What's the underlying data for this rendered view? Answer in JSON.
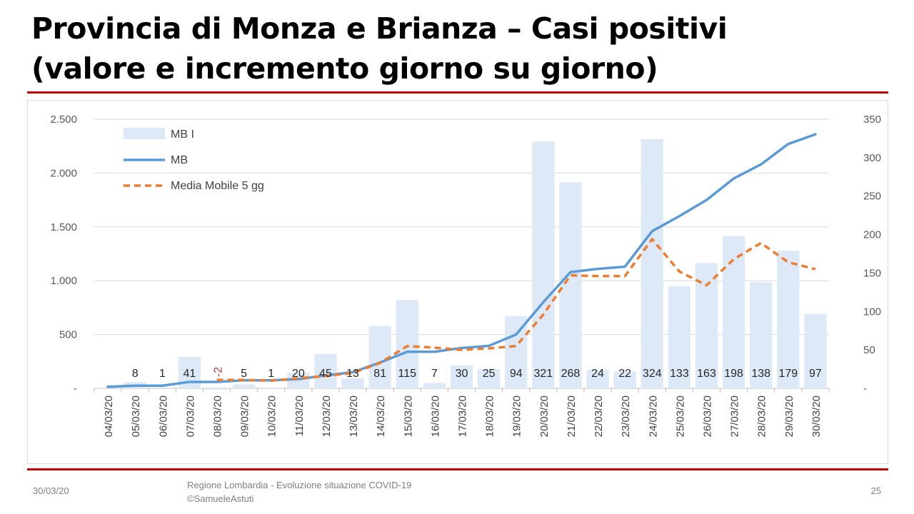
{
  "slide": {
    "title_line1": "Provincia di Monza e Brianza – Casi positivi",
    "title_line2": "(valore e incremento giorno su giorno)",
    "footer_date": "30/03/20",
    "footer_source_line1": "Regione Lombardia - Evoluzione situazione COVID-19",
    "footer_source_line2": "©SamueleAstuti",
    "page_number": "25"
  },
  "colors": {
    "accent_rule": "#c00000",
    "bars": "#dde9f6",
    "line": "#5b9bd5",
    "moving_avg": "#ed7d31",
    "grid": "#d9d9d9"
  },
  "chart_data": {
    "type": "bar",
    "categories": [
      "04/03/20",
      "05/03/20",
      "06/03/20",
      "07/03/20",
      "08/03/20",
      "09/03/20",
      "10/03/20",
      "11/03/20",
      "12/03/20",
      "13/03/20",
      "14/03/20",
      "15/03/20",
      "16/03/20",
      "17/03/20",
      "18/03/20",
      "19/03/20",
      "20/03/20",
      "21/03/20",
      "22/03/20",
      "23/03/20",
      "24/03/20",
      "25/03/20",
      "26/03/20",
      "27/03/20",
      "28/03/20",
      "29/03/20",
      "30/03/20"
    ],
    "y_left": {
      "ticks": [
        "2.500",
        "2.000",
        "1.500",
        "1.000",
        "500",
        "-"
      ],
      "values": [
        2500,
        2000,
        1500,
        1000,
        500,
        0
      ],
      "ylim": [
        0,
        2500
      ]
    },
    "y_right": {
      "ticks": [
        "350",
        "300",
        "250",
        "200",
        "150",
        "100",
        "50",
        "-"
      ],
      "values": [
        350,
        300,
        250,
        200,
        150,
        100,
        50,
        0
      ],
      "ylim": [
        0,
        350
      ]
    },
    "legend_position": "top-left",
    "series": [
      {
        "name": "MB I",
        "type": "bar",
        "axis": "right",
        "values": [
          null,
          8,
          1,
          41,
          -2,
          5,
          1,
          20,
          45,
          13,
          81,
          115,
          7,
          30,
          25,
          94,
          321,
          268,
          24,
          22,
          324,
          133,
          163,
          198,
          138,
          179,
          97
        ],
        "labels": [
          "",
          "8",
          "1",
          "41",
          "-2",
          "5",
          "1",
          "20",
          "45",
          "13",
          "81",
          "115",
          "7",
          "30",
          "25",
          "94",
          "321",
          "268",
          "24",
          "22",
          "324",
          "133",
          "163",
          "198",
          "138",
          "179",
          "97"
        ]
      },
      {
        "name": "MB",
        "type": "line",
        "axis": "left",
        "values": [
          15,
          25,
          25,
          60,
          60,
          75,
          75,
          85,
          120,
          150,
          240,
          340,
          340,
          375,
          395,
          500,
          800,
          1080,
          1110,
          1130,
          1460,
          1600,
          1750,
          1950,
          2080,
          2270,
          2360
        ]
      },
      {
        "name": "Media Mobile 5 gg",
        "type": "line",
        "style": "dashed",
        "axis": "right",
        "values": [
          null,
          null,
          null,
          null,
          11,
          11,
          10,
          13,
          16,
          20,
          33,
          55,
          53,
          50,
          52,
          55,
          96,
          147,
          146,
          146,
          194,
          152,
          134,
          168,
          189,
          164,
          155
        ]
      }
    ]
  }
}
